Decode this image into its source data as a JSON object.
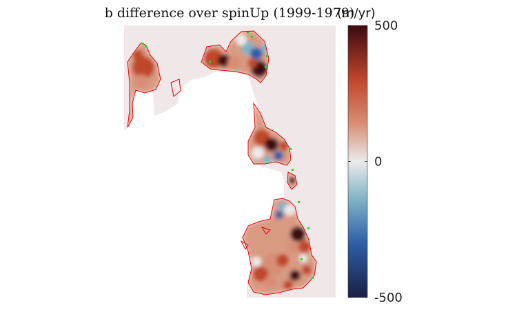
{
  "chart_data": {
    "type": "heatmap",
    "title": "b difference over spinUp (1999-1979)",
    "colorbar": {
      "label": "(m/yr)",
      "min": -500,
      "max": 500,
      "ticks": [
        {
          "value": 500,
          "label": "500"
        },
        {
          "value": 0,
          "label": "0"
        },
        {
          "value": -500,
          "label": "-500"
        }
      ],
      "colors": {
        "low": "#1a1f45",
        "mid_low": "#2e5fa8",
        "quarter_low": "#7fb3c6",
        "zero": "#eceaea",
        "quarter_high": "#d88e75",
        "mid_high": "#c0462a",
        "high": "#3d0a12"
      }
    },
    "map": {
      "background_color": "#f0e8e8",
      "outline_color": "#e00000",
      "highlight_color": "#22dd22",
      "grid": false
    }
  }
}
